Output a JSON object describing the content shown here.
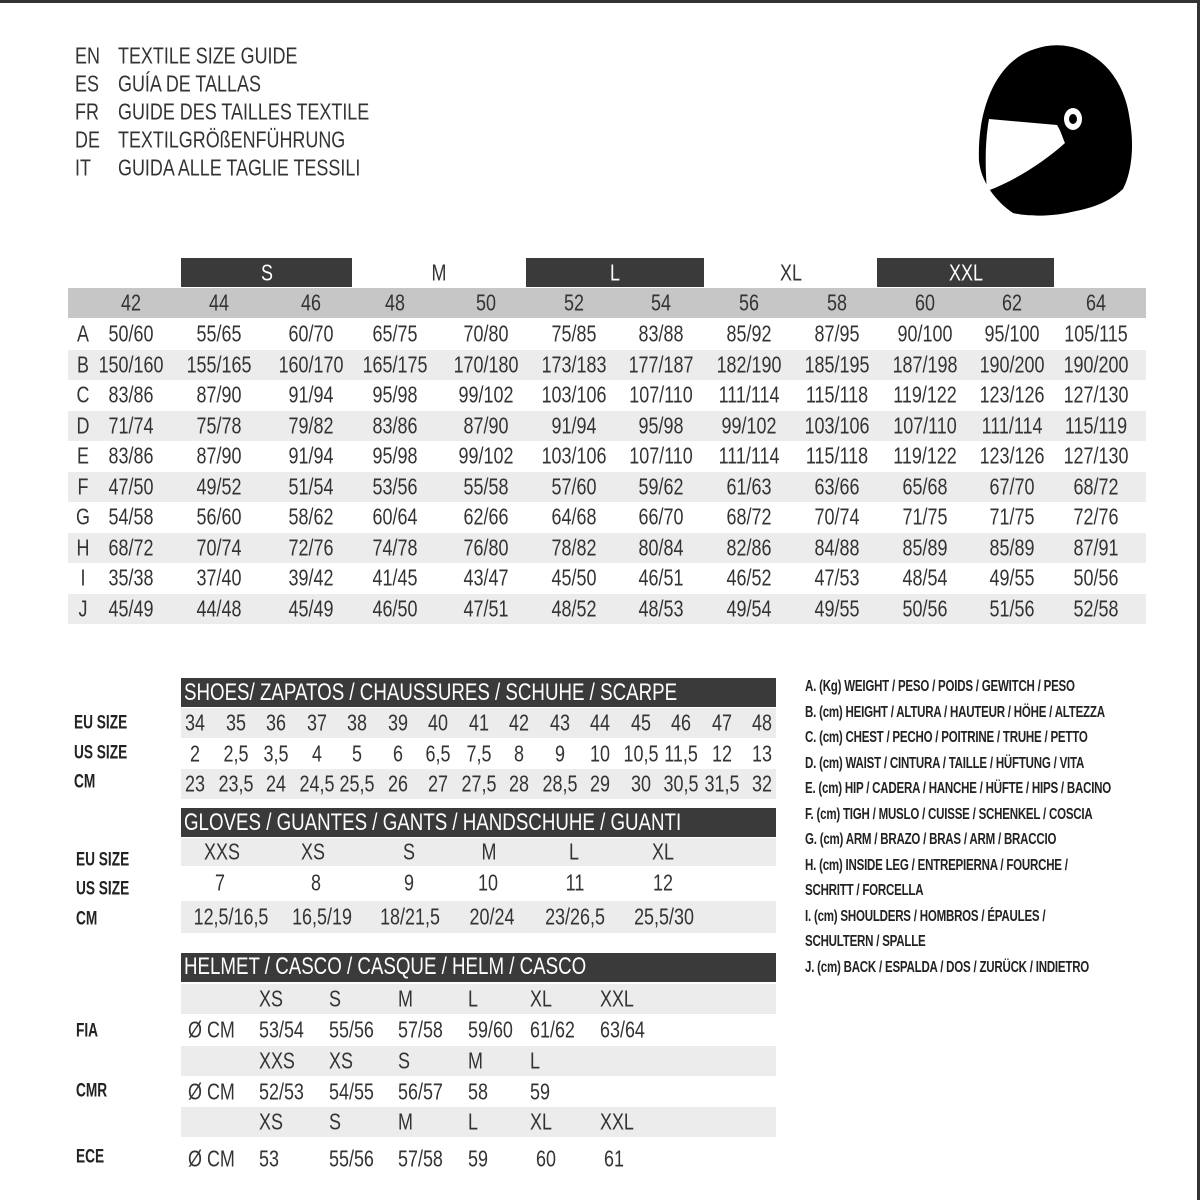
{
  "title_block": [
    {
      "lang": "EN",
      "text": "TEXTILE SIZE GUIDE"
    },
    {
      "lang": "ES",
      "text": "GUÍA DE TALLAS"
    },
    {
      "lang": "FR",
      "text": "GUIDE DES TAILLES TEXTILE"
    },
    {
      "lang": "DE",
      "text": "TEXTILGRÖßENFÜHRUNG"
    },
    {
      "lang": "IT",
      "text": "GUIDA ALLE TAGLIE TESSILI"
    }
  ],
  "logo_icon": "helmet-icon",
  "colors": {
    "dark_band": "#3a3a3a",
    "size_row": "#c6c6c6",
    "stripe": "#ececec",
    "text": "#333333"
  },
  "textile": {
    "letter_sizes": [
      {
        "label": "S",
        "style": "dark"
      },
      {
        "label": "M",
        "style": "plain"
      },
      {
        "label": "L",
        "style": "dark"
      },
      {
        "label": "XL",
        "style": "plain"
      },
      {
        "label": "XXL",
        "style": "dark"
      }
    ],
    "sizes": [
      "42",
      "44",
      "46",
      "48",
      "50",
      "52",
      "54",
      "56",
      "58",
      "60",
      "62",
      "64"
    ],
    "rows": [
      {
        "key": "A",
        "values": [
          "50/60",
          "55/65",
          "60/70",
          "65/75",
          "70/80",
          "75/85",
          "83/88",
          "85/92",
          "87/95",
          "90/100",
          "95/100",
          "105/115"
        ]
      },
      {
        "key": "B",
        "values": [
          "150/160",
          "155/165",
          "160/170",
          "165/175",
          "170/180",
          "173/183",
          "177/187",
          "182/190",
          "185/195",
          "187/198",
          "190/200",
          "190/200"
        ]
      },
      {
        "key": "C",
        "values": [
          "83/86",
          "87/90",
          "91/94",
          "95/98",
          "99/102",
          "103/106",
          "107/110",
          "111/114",
          "115/118",
          "119/122",
          "123/126",
          "127/130"
        ]
      },
      {
        "key": "D",
        "values": [
          "71/74",
          "75/78",
          "79/82",
          "83/86",
          "87/90",
          "91/94",
          "95/98",
          "99/102",
          "103/106",
          "107/110",
          "111/114",
          "115/119"
        ]
      },
      {
        "key": "E",
        "values": [
          "83/86",
          "87/90",
          "91/94",
          "95/98",
          "99/102",
          "103/106",
          "107/110",
          "111/114",
          "115/118",
          "119/122",
          "123/126",
          "127/130"
        ]
      },
      {
        "key": "F",
        "values": [
          "47/50",
          "49/52",
          "51/54",
          "53/56",
          "55/58",
          "57/60",
          "59/62",
          "61/63",
          "63/66",
          "65/68",
          "67/70",
          "68/72"
        ]
      },
      {
        "key": "G",
        "values": [
          "54/58",
          "56/60",
          "58/62",
          "60/64",
          "62/66",
          "64/68",
          "66/70",
          "68/72",
          "70/74",
          "71/75",
          "71/75",
          "72/76"
        ]
      },
      {
        "key": "H",
        "values": [
          "68/72",
          "70/74",
          "72/76",
          "74/78",
          "76/80",
          "78/82",
          "80/84",
          "82/86",
          "84/88",
          "85/89",
          "85/89",
          "87/91"
        ]
      },
      {
        "key": "I",
        "values": [
          "35/38",
          "37/40",
          "39/42",
          "41/45",
          "43/47",
          "45/50",
          "46/51",
          "46/52",
          "47/53",
          "48/54",
          "49/55",
          "50/56"
        ]
      },
      {
        "key": "J",
        "values": [
          "45/49",
          "44/48",
          "45/49",
          "46/50",
          "47/51",
          "48/52",
          "48/53",
          "49/54",
          "49/55",
          "50/56",
          "51/56",
          "52/58"
        ]
      }
    ]
  },
  "shoes": {
    "title": "SHOES/ ZAPATOS / CHAUSSURES / SCHUHE / SCARPE",
    "rows": [
      {
        "label": "EU SIZE",
        "values": [
          "34",
          "35",
          "36",
          "37",
          "38",
          "39",
          "40",
          "41",
          "42",
          "43",
          "44",
          "45",
          "46",
          "47",
          "48"
        ]
      },
      {
        "label": "US SIZE",
        "values": [
          "2",
          "2,5",
          "3,5",
          "4",
          "5",
          "6",
          "6,5",
          "7,5",
          "8",
          "9",
          "10",
          "10,5",
          "11,5",
          "12",
          "13"
        ]
      },
      {
        "label": "CM",
        "values": [
          "23",
          "23,5",
          "24",
          "24,5",
          "25,5",
          "26",
          "27",
          "27,5",
          "28",
          "28,5",
          "29",
          "30",
          "30,5",
          "31,5",
          "32"
        ]
      }
    ]
  },
  "gloves": {
    "title": "GLOVES / GUANTES / GANTS / HANDSCHUHE / GUANTI",
    "rows": [
      {
        "label": "EU SIZE",
        "values": [
          "XXS",
          "XS",
          "S",
          "M",
          "L",
          "XL"
        ]
      },
      {
        "label": "US SIZE",
        "values": [
          "7",
          "8",
          "9",
          "10",
          "11",
          "12"
        ]
      },
      {
        "label": "CM",
        "values": [
          "12,5/16,5",
          "16,5/19",
          "18/21,5",
          "20/24",
          "23/26,5",
          "25,5/30"
        ]
      }
    ]
  },
  "helmet": {
    "title": "HELMET / CASCO / CASQUE / HELM / CASCO",
    "unit": "Ø CM",
    "standards": [
      {
        "label": "FIA",
        "sizes": [
          "XS",
          "S",
          "M",
          "L",
          "XL",
          "XXL"
        ],
        "values": [
          "53/54",
          "55/56",
          "57/58",
          "59/60",
          "61/62",
          "63/64"
        ]
      },
      {
        "label": "CMR",
        "sizes": [
          "XXS",
          "XS",
          "S",
          "M",
          "L"
        ],
        "values": [
          "52/53",
          "54/55",
          "56/57",
          "58",
          "59"
        ]
      },
      {
        "label": "ECE",
        "sizes": [
          "XS",
          "S",
          "M",
          "L",
          "XL",
          "XXL"
        ],
        "values": [
          "53",
          "55/56",
          "57/58",
          "59",
          "60",
          "61"
        ]
      }
    ]
  },
  "legend": [
    "A. (Kg) WEIGHT / PESO / POIDS / GEWITCH / PESO",
    "B. (cm) HEIGHT / ALTURA / HAUTEUR / HÖHE / ALTEZZA",
    "C. (cm) CHEST / PECHO / POITRINE / TRUHE / PETTO",
    "D. (cm) WAIST / CINTURA / TAILLE / HÜFTUNG / VITA",
    "E. (cm) HIP / CADERA / HANCHE / HÜFTE / HIPS /  BACINO",
    "F.  (cm) TIGH / MUSLO / CUISSE / SCHENKEL / COSCIA",
    "G. (cm) ARM  / BRAZO / BRAS / ARM / BRACCIO",
    "H. (cm) INSIDE LEG / ENTREPIERNA / FOURCHE /",
    "SCHRITT / FORCELLA",
    "I.  (cm) SHOULDERS / HOMBROS / ÉPAULES /",
    "SCHULTERN / SPALLE",
    "J. (cm) BACK / ESPALDA / DOS / ZURÜCK / INDIETRO"
  ]
}
